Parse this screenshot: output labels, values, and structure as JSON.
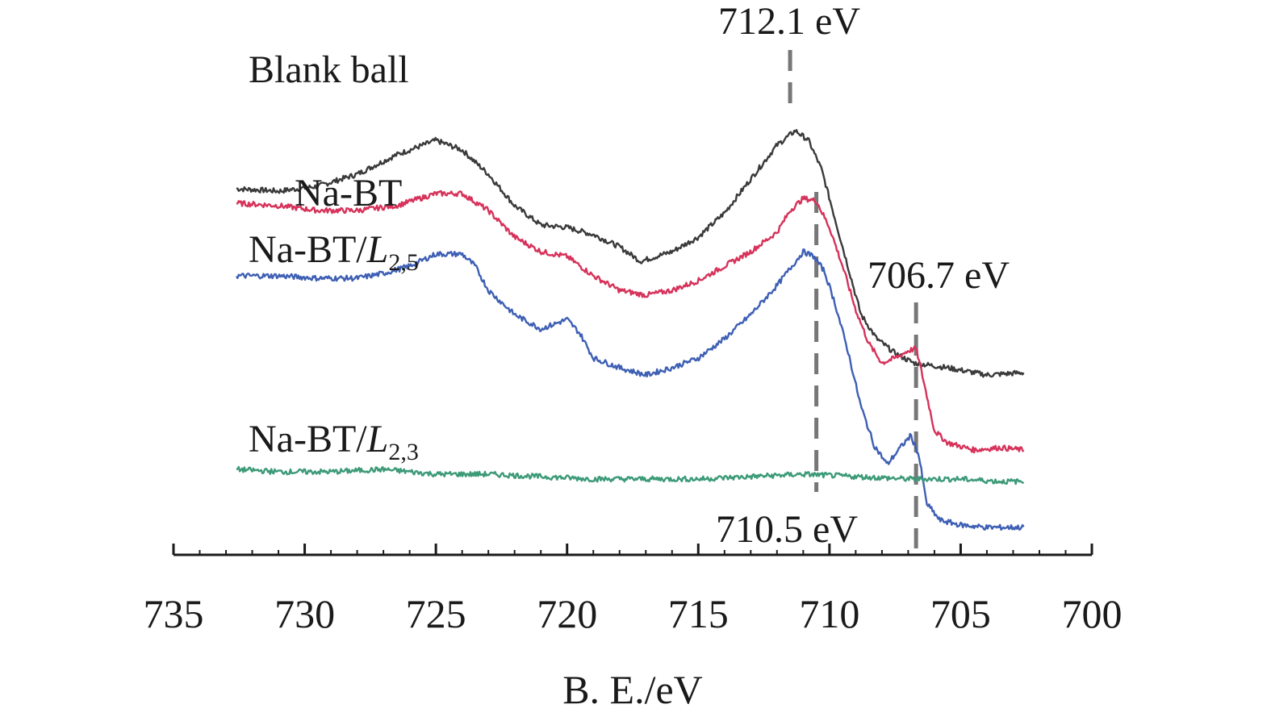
{
  "chart_data": {
    "type": "line",
    "title": "",
    "xlabel": "B. E./eV",
    "ylabel": "",
    "x_reversed": true,
    "xlim": [
      735,
      700
    ],
    "x_ticks": [
      735,
      730,
      725,
      720,
      715,
      710,
      705,
      700
    ],
    "y_axis_shown": false,
    "grid": false,
    "series": [
      {
        "name": "Blank ball",
        "color": "#3a3a3a",
        "points": [
          [
            732.6,
            0.62
          ],
          [
            731,
            0.61
          ],
          [
            729.5,
            0.63
          ],
          [
            728,
            0.68
          ],
          [
            726.5,
            0.76
          ],
          [
            725,
            0.82
          ],
          [
            724,
            0.78
          ],
          [
            723,
            0.68
          ],
          [
            722,
            0.55
          ],
          [
            721,
            0.47
          ],
          [
            720,
            0.46
          ],
          [
            719,
            0.43
          ],
          [
            718,
            0.38
          ],
          [
            717.2,
            0.32
          ],
          [
            716,
            0.36
          ],
          [
            715,
            0.42
          ],
          [
            714,
            0.52
          ],
          [
            713,
            0.66
          ],
          [
            712,
            0.8
          ],
          [
            711.3,
            0.86
          ],
          [
            710.8,
            0.82
          ],
          [
            710.3,
            0.7
          ],
          [
            709.8,
            0.5
          ],
          [
            709.3,
            0.3
          ],
          [
            708.8,
            0.1
          ],
          [
            708.2,
            0.0
          ],
          [
            707.5,
            -0.06
          ],
          [
            706.8,
            -0.1
          ],
          [
            705.5,
            -0.12
          ],
          [
            704,
            -0.15
          ],
          [
            702.6,
            -0.14
          ]
        ]
      },
      {
        "name": "Na-BT",
        "color": "#d6325a",
        "points": [
          [
            732.6,
            0.56
          ],
          [
            731,
            0.55
          ],
          [
            729.5,
            0.53
          ],
          [
            728,
            0.53
          ],
          [
            726.5,
            0.55
          ],
          [
            725,
            0.6
          ],
          [
            724,
            0.6
          ],
          [
            723,
            0.53
          ],
          [
            722,
            0.42
          ],
          [
            721,
            0.36
          ],
          [
            720,
            0.34
          ],
          [
            719,
            0.26
          ],
          [
            718,
            0.2
          ],
          [
            717,
            0.18
          ],
          [
            716,
            0.2
          ],
          [
            715,
            0.24
          ],
          [
            714,
            0.3
          ],
          [
            713,
            0.36
          ],
          [
            712,
            0.44
          ],
          [
            711.5,
            0.53
          ],
          [
            711,
            0.58
          ],
          [
            710.5,
            0.57
          ],
          [
            710,
            0.46
          ],
          [
            709.5,
            0.3
          ],
          [
            709,
            0.12
          ],
          [
            708.5,
            -0.02
          ],
          [
            708,
            -0.1
          ],
          [
            707.5,
            -0.08
          ],
          [
            707,
            -0.05
          ],
          [
            706.7,
            -0.04
          ],
          [
            706.4,
            -0.18
          ],
          [
            706,
            -0.38
          ],
          [
            705.5,
            -0.43
          ],
          [
            704.5,
            -0.46
          ],
          [
            703.5,
            -0.45
          ],
          [
            702.6,
            -0.46
          ]
        ]
      },
      {
        "name": "Na-BT/L2,5",
        "color": "#3e5fb4",
        "points": [
          [
            732.6,
            0.26
          ],
          [
            731,
            0.26
          ],
          [
            729.5,
            0.25
          ],
          [
            728,
            0.25
          ],
          [
            727,
            0.27
          ],
          [
            726,
            0.3
          ],
          [
            725,
            0.35
          ],
          [
            724,
            0.35
          ],
          [
            723.5,
            0.3
          ],
          [
            723,
            0.2
          ],
          [
            722,
            0.1
          ],
          [
            721,
            0.04
          ],
          [
            720,
            0.08
          ],
          [
            719.5,
            0.02
          ],
          [
            719,
            -0.08
          ],
          [
            718,
            -0.12
          ],
          [
            717,
            -0.15
          ],
          [
            716,
            -0.12
          ],
          [
            715,
            -0.08
          ],
          [
            714,
            0.0
          ],
          [
            713,
            0.1
          ],
          [
            712,
            0.22
          ],
          [
            711.5,
            0.29
          ],
          [
            711,
            0.36
          ],
          [
            710.6,
            0.34
          ],
          [
            710.2,
            0.28
          ],
          [
            709.8,
            0.15
          ],
          [
            709.3,
            -0.05
          ],
          [
            708.8,
            -0.28
          ],
          [
            708.3,
            -0.44
          ],
          [
            707.8,
            -0.52
          ],
          [
            707.3,
            -0.45
          ],
          [
            706.9,
            -0.4
          ],
          [
            706.6,
            -0.48
          ],
          [
            706.3,
            -0.68
          ],
          [
            705.8,
            -0.75
          ],
          [
            705,
            -0.77
          ],
          [
            704,
            -0.78
          ],
          [
            702.6,
            -0.78
          ]
        ]
      },
      {
        "name": "Na-BT/L2,3",
        "color": "#3c9a78",
        "points": [
          [
            732.6,
            -0.54
          ],
          [
            731,
            -0.55
          ],
          [
            729,
            -0.55
          ],
          [
            727,
            -0.54
          ],
          [
            725,
            -0.56
          ],
          [
            723,
            -0.56
          ],
          [
            721,
            -0.57
          ],
          [
            719,
            -0.58
          ],
          [
            717,
            -0.58
          ],
          [
            715,
            -0.58
          ],
          [
            713,
            -0.57
          ],
          [
            711,
            -0.56
          ],
          [
            709,
            -0.57
          ],
          [
            707,
            -0.58
          ],
          [
            705,
            -0.58
          ],
          [
            703.5,
            -0.59
          ],
          [
            702.6,
            -0.59
          ]
        ]
      }
    ],
    "annotations": [
      {
        "text": "712.1 eV",
        "x": 711.5,
        "color": "#777777",
        "style": "dashed"
      },
      {
        "text": "710.5 eV",
        "x": 710.5,
        "color": "#777777",
        "style": "dashed"
      },
      {
        "text": "706.7 eV",
        "x": 706.7,
        "color": "#777777",
        "style": "dashed"
      }
    ]
  }
}
